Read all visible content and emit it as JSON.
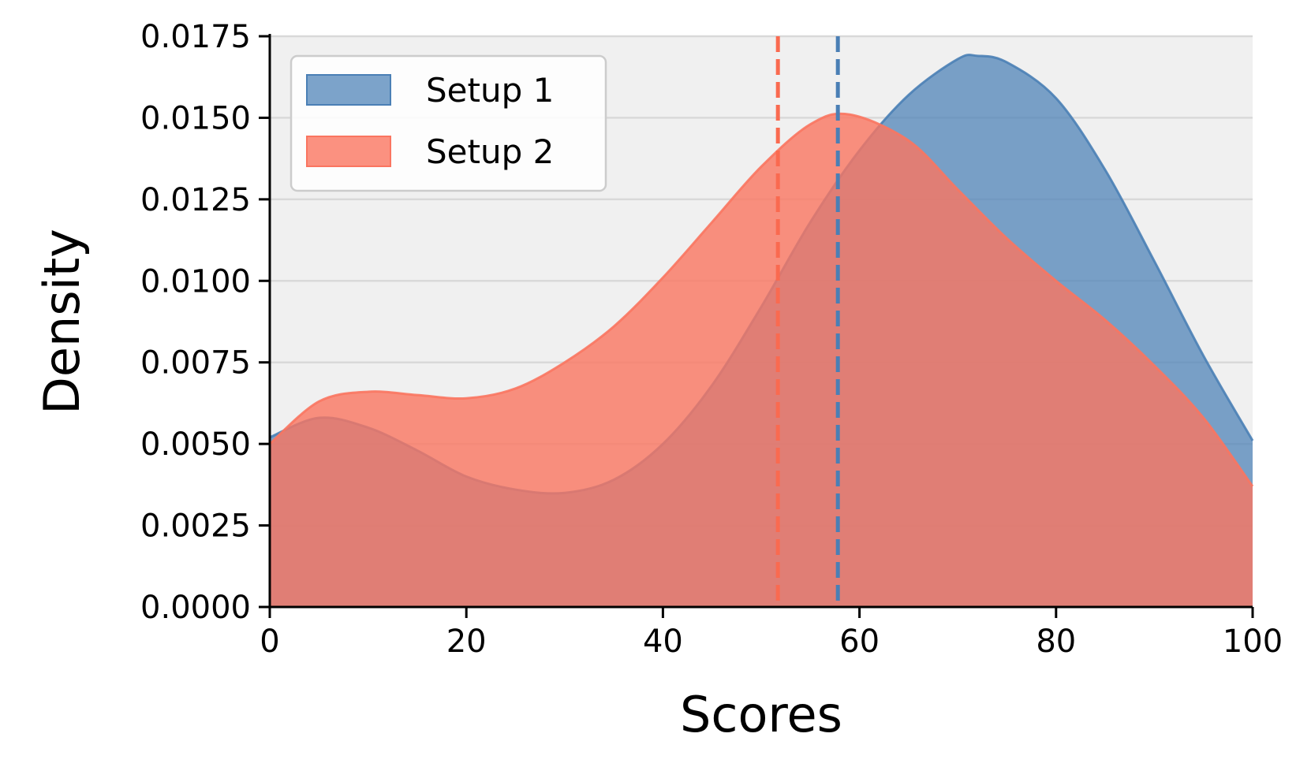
{
  "chart_data": {
    "type": "area",
    "title": "",
    "xlabel": "Scores",
    "ylabel": "Density",
    "xlim": [
      0,
      100
    ],
    "ylim": [
      0,
      0.0175
    ],
    "x_ticks": [
      0,
      20,
      40,
      60,
      80,
      100
    ],
    "x_tick_labels": [
      "0",
      "20",
      "40",
      "60",
      "80",
      "100"
    ],
    "y_ticks": [
      0,
      0.0025,
      0.005,
      0.0075,
      0.01,
      0.0125,
      0.015,
      0.0175
    ],
    "y_tick_labels": [
      "0.0000",
      "0.0025",
      "0.0050",
      "0.0075",
      "0.0100",
      "0.0125",
      "0.0150",
      "0.0175"
    ],
    "grid": "horizontal",
    "legend_position": "top-left",
    "background_color": "#f0f0f0",
    "series": [
      {
        "name": "Setup 1",
        "color": "#4a7fb5",
        "fill_opacity": 0.72,
        "mean": 57.8,
        "x": [
          0,
          5,
          10,
          15,
          20,
          25,
          30,
          35,
          40,
          45,
          50,
          55,
          60,
          65,
          70,
          72,
          75,
          80,
          85,
          90,
          95,
          100
        ],
        "values": [
          0.0052,
          0.0058,
          0.0055,
          0.0048,
          0.004,
          0.0036,
          0.0035,
          0.0039,
          0.005,
          0.0068,
          0.0092,
          0.0118,
          0.014,
          0.0157,
          0.0168,
          0.0169,
          0.0167,
          0.0156,
          0.0134,
          0.0106,
          0.0077,
          0.0051
        ]
      },
      {
        "name": "Setup 2",
        "color": "#fa7560",
        "fill_opacity": 0.8,
        "mean": 51.7,
        "x": [
          0,
          5,
          10,
          15,
          20,
          25,
          30,
          35,
          40,
          45,
          50,
          55,
          59,
          65,
          70,
          75,
          80,
          85,
          90,
          95,
          100
        ],
        "values": [
          0.005,
          0.0063,
          0.0066,
          0.0065,
          0.0064,
          0.0067,
          0.0075,
          0.0086,
          0.0101,
          0.0118,
          0.0135,
          0.0148,
          0.0151,
          0.0143,
          0.0128,
          0.0113,
          0.01,
          0.0088,
          0.0074,
          0.0058,
          0.0037
        ]
      }
    ]
  }
}
